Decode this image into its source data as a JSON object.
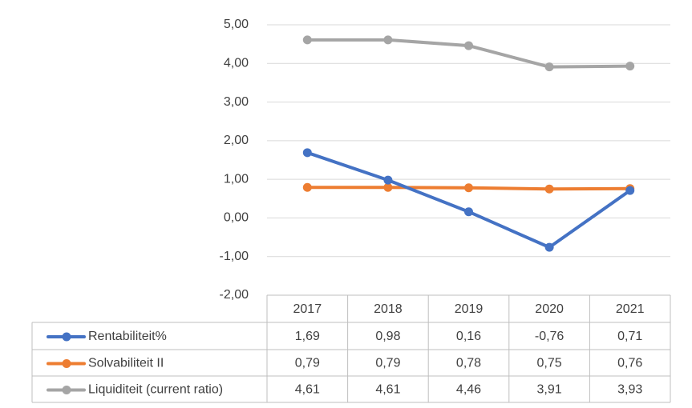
{
  "chart_data": {
    "type": "line",
    "categories": [
      "2017",
      "2018",
      "2019",
      "2020",
      "2021"
    ],
    "series": [
      {
        "name": "Rentabiliteit%",
        "color": "#4472c4",
        "values": [
          1.69,
          0.98,
          0.16,
          -0.76,
          0.71
        ],
        "value_labels": [
          "1,69",
          "0,98",
          "0,16",
          "-0,76",
          "0,71"
        ]
      },
      {
        "name": "Solvabiliteit II",
        "color": "#ed7d31",
        "values": [
          0.79,
          0.79,
          0.78,
          0.75,
          0.76
        ],
        "value_labels": [
          "0,79",
          "0,79",
          "0,78",
          "0,75",
          "0,76"
        ]
      },
      {
        "name": "Liquiditeit (current ratio)",
        "color": "#a5a5a5",
        "values": [
          4.61,
          4.61,
          4.46,
          3.91,
          3.93
        ],
        "value_labels": [
          "4,61",
          "4,61",
          "4,46",
          "3,91",
          "3,93"
        ]
      }
    ],
    "ylim": [
      -2,
      5
    ],
    "yticks": [
      {
        "value": -2,
        "label": "-2,00"
      },
      {
        "value": -1,
        "label": "-1,00"
      },
      {
        "value": 0,
        "label": "0,00"
      },
      {
        "value": 1,
        "label": "1,00"
      },
      {
        "value": 2,
        "label": "2,00"
      },
      {
        "value": 3,
        "label": "3,00"
      },
      {
        "value": 4,
        "label": "4,00"
      },
      {
        "value": 5,
        "label": "5,00"
      }
    ],
    "grid": true
  }
}
